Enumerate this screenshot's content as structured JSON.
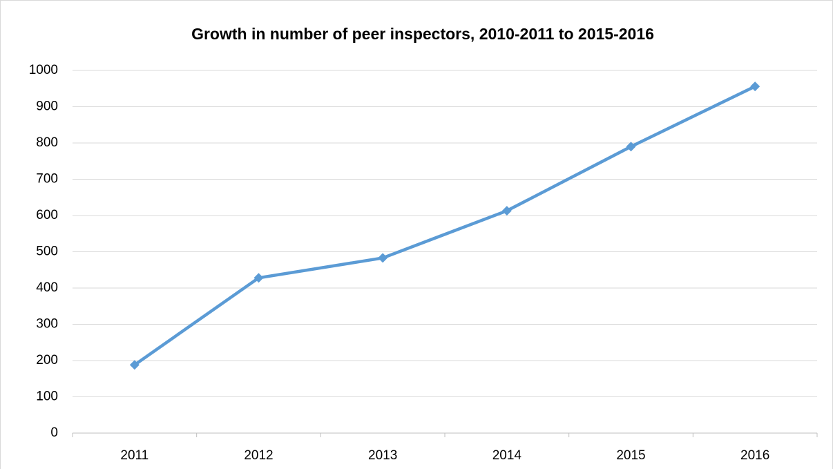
{
  "chart_data": {
    "type": "line",
    "title": "Growth in number of peer inspectors, 2010-2011 to 2015-2016",
    "categories": [
      "2011",
      "2012",
      "2013",
      "2014",
      "2015",
      "2016"
    ],
    "series": [
      {
        "name": "Peer inspectors",
        "color": "#5b9bd5",
        "values": [
          188,
          428,
          483,
          613,
          790,
          956
        ]
      }
    ],
    "ylim": [
      0,
      1000
    ],
    "yticks": [
      0,
      100,
      200,
      300,
      400,
      500,
      600,
      700,
      800,
      900,
      1000
    ],
    "grid": true
  }
}
